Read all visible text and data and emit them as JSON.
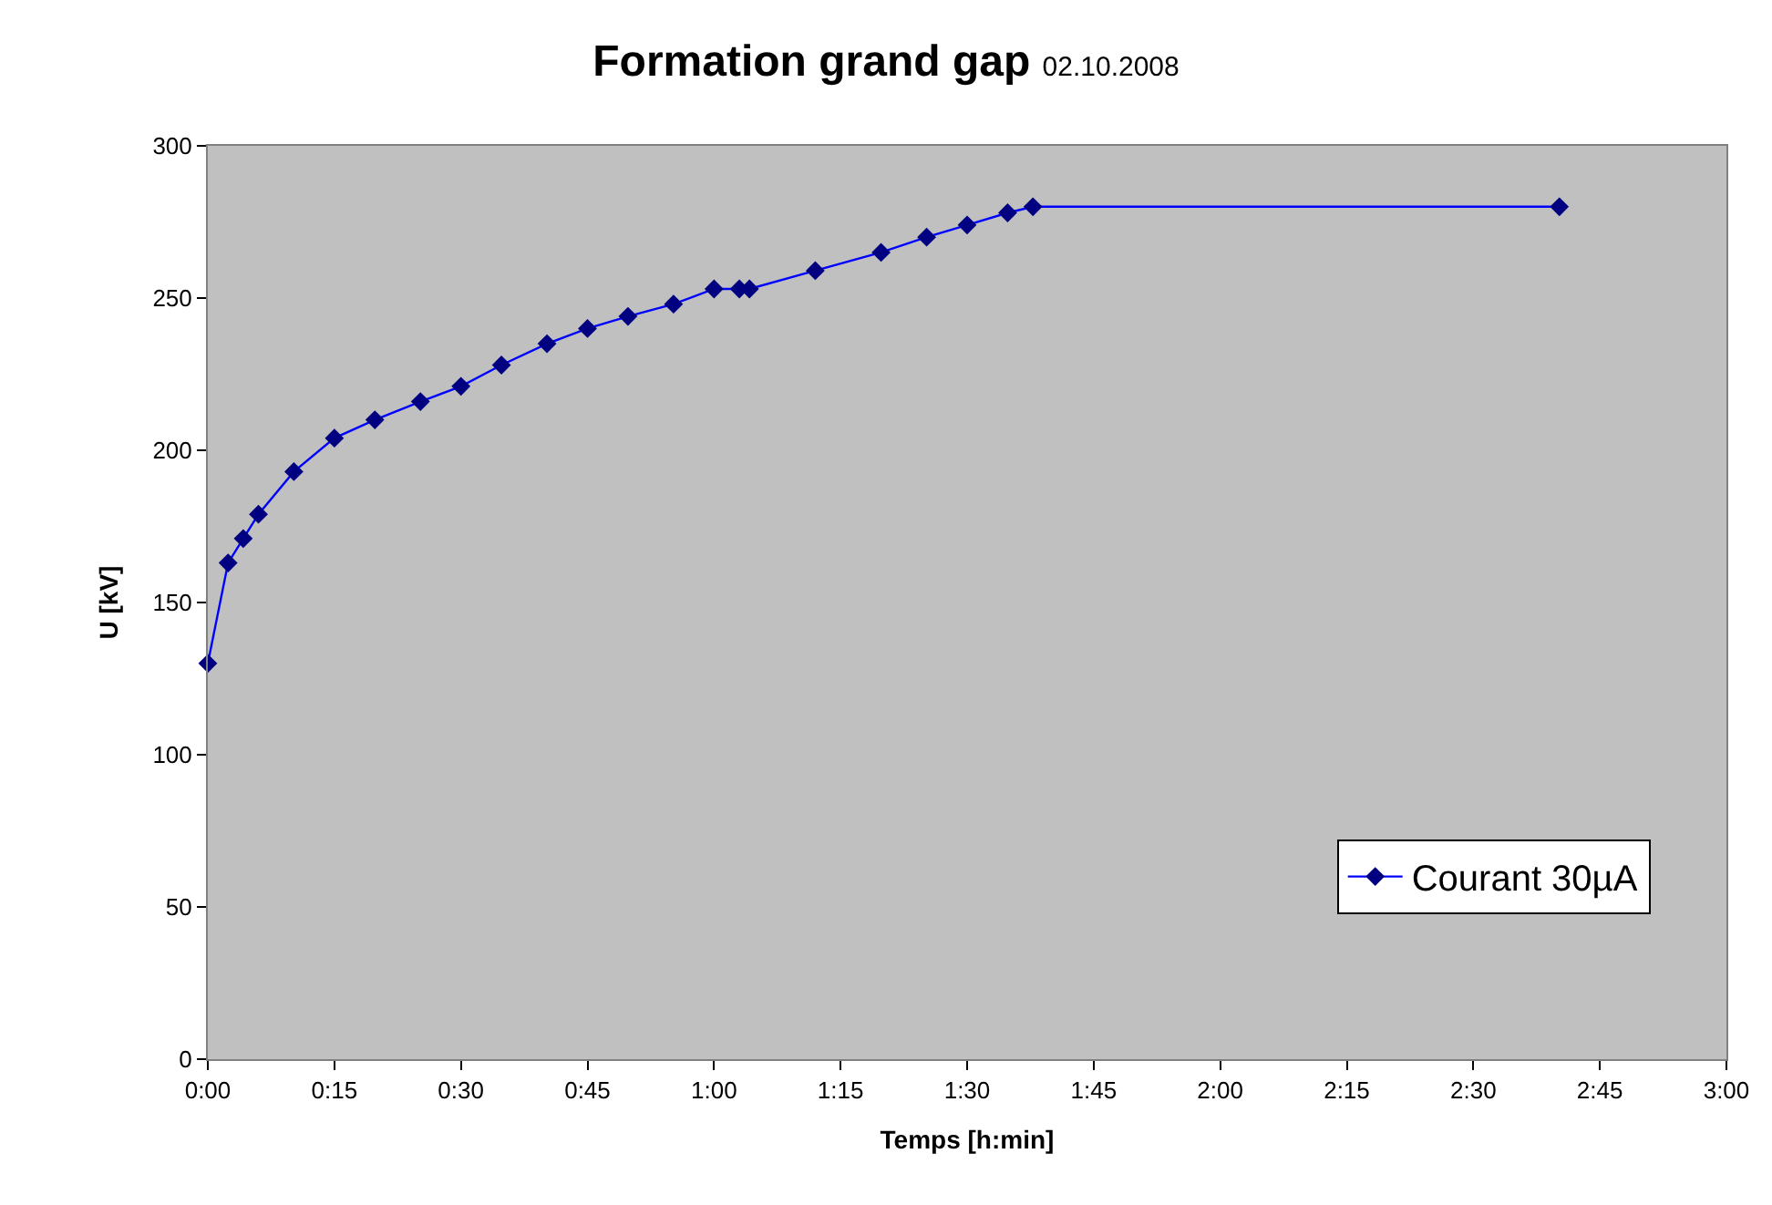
{
  "chart_data": {
    "type": "line",
    "title": "Formation grand gap",
    "subtitle": "02.10.2008",
    "xlabel": "Temps [h:min]",
    "ylabel": "U [kV]",
    "x": [
      0,
      0.04,
      0.07,
      0.1,
      0.17,
      0.25,
      0.33,
      0.42,
      0.5,
      0.58,
      0.67,
      0.75,
      0.83,
      0.92,
      1.0,
      1.05,
      1.07,
      1.2,
      1.33,
      1.42,
      1.5,
      1.58,
      1.63,
      2.67
    ],
    "series": [
      {
        "name": "Courant 30µA",
        "color": "#000080",
        "values": [
          130,
          163,
          171,
          179,
          193,
          204,
          210,
          216,
          221,
          228,
          235,
          240,
          244,
          248,
          253,
          253,
          253,
          259,
          265,
          270,
          274,
          278,
          280,
          280
        ]
      }
    ],
    "xlim": [
      0,
      3
    ],
    "xticks": [
      {
        "value": 0,
        "label": "0:00"
      },
      {
        "value": 0.25,
        "label": "0:15"
      },
      {
        "value": 0.5,
        "label": "0:30"
      },
      {
        "value": 0.75,
        "label": "0:45"
      },
      {
        "value": 1,
        "label": "1:00"
      },
      {
        "value": 1.25,
        "label": "1:15"
      },
      {
        "value": 1.5,
        "label": "1:30"
      },
      {
        "value": 1.75,
        "label": "1:45"
      },
      {
        "value": 2,
        "label": "2:00"
      },
      {
        "value": 2.25,
        "label": "2:15"
      },
      {
        "value": 2.5,
        "label": "2:30"
      },
      {
        "value": 2.75,
        "label": "2:45"
      },
      {
        "value": 3,
        "label": "3:00"
      }
    ],
    "ylim": [
      0,
      300
    ],
    "yticks": [
      0,
      50,
      100,
      150,
      200,
      250,
      300
    ],
    "grid": false,
    "legend": "bottom right",
    "marker": "diamond",
    "line_style": "solid"
  }
}
